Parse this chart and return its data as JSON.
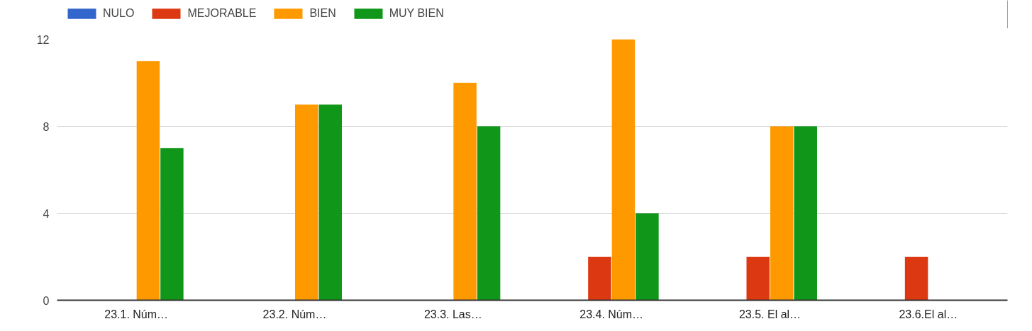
{
  "chart_data": {
    "type": "bar",
    "categories": [
      "23.1. Núm…",
      "23.2. Núm…",
      "23.3. Las…",
      "23.4. Núm…",
      "23.5. El al…",
      "23.6.El al…"
    ],
    "series": [
      {
        "name": "NULO",
        "color": "#3366cc",
        "values": [
          0,
          0,
          0,
          0,
          0,
          null
        ]
      },
      {
        "name": "MEJORABLE",
        "color": "#dc3912",
        "values": [
          0,
          0,
          0,
          2,
          2,
          2
        ]
      },
      {
        "name": "BIEN",
        "color": "#ff9900",
        "values": [
          11,
          9,
          10,
          12,
          8,
          null
        ]
      },
      {
        "name": "MUY BIEN",
        "color": "#109618",
        "values": [
          7,
          9,
          8,
          4,
          8,
          null
        ]
      }
    ],
    "ylim": [
      0,
      12
    ],
    "yticks": [
      0,
      4,
      8,
      12
    ],
    "grid": "y",
    "legend": "top left"
  }
}
